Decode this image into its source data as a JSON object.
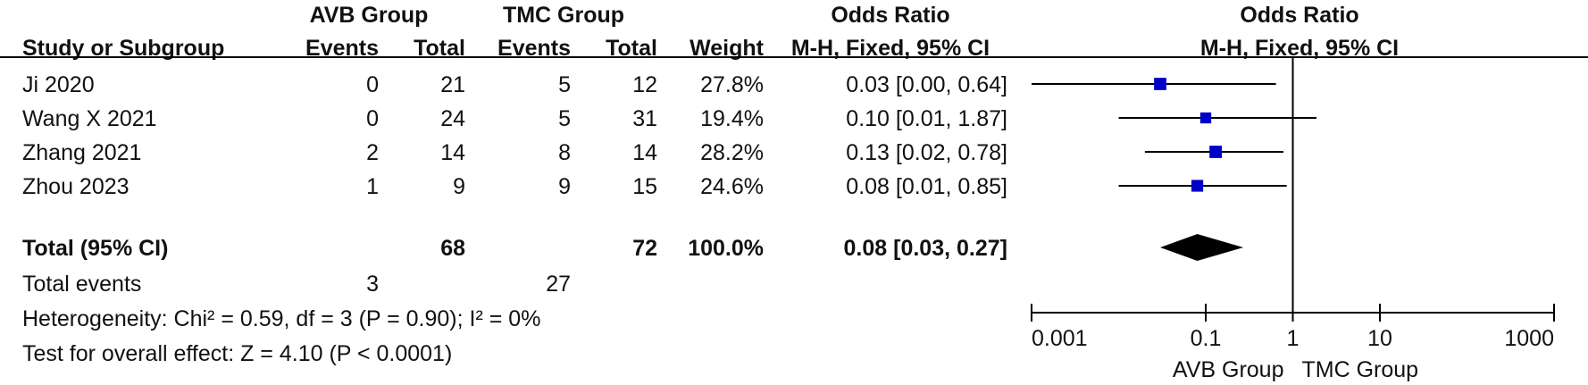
{
  "headers": {
    "group1_name": "AVB Group",
    "group2_name": "TMC Group",
    "odds_ratio": "Odds Ratio",
    "odds_ratio_plot": "Odds Ratio",
    "study_col": "Study or Subgroup",
    "events_col_1": "Events",
    "total_col_1": "Total",
    "events_col_2": "Events",
    "total_col_2": "Total",
    "weight_col": "Weight",
    "method_col": "M-H, Fixed, 95% CI",
    "method_col_plot": "M-H, Fixed, 95% CI"
  },
  "studies": [
    {
      "name": "Ji 2020",
      "g1_events": "0",
      "g1_total": "21",
      "g2_events": "5",
      "g2_total": "12",
      "weight": "27.8%",
      "ci_text": "0.03 [0.00, 0.64]"
    },
    {
      "name": "Wang X 2021",
      "g1_events": "0",
      "g1_total": "24",
      "g2_events": "5",
      "g2_total": "31",
      "weight": "19.4%",
      "ci_text": "0.10 [0.01, 1.87]"
    },
    {
      "name": "Zhang 2021",
      "g1_events": "2",
      "g1_total": "14",
      "g2_events": "8",
      "g2_total": "14",
      "weight": "28.2%",
      "ci_text": "0.13 [0.02, 0.78]"
    },
    {
      "name": "Zhou 2023",
      "g1_events": "1",
      "g1_total": "9",
      "g2_events": "9",
      "g2_total": "15",
      "weight": "24.6%",
      "ci_text": "0.08 [0.01, 0.85]"
    }
  ],
  "total": {
    "label": "Total (95% CI)",
    "g1_total": "68",
    "g2_total": "72",
    "weight": "100.0%",
    "ci_text": "0.08 [0.03, 0.27]"
  },
  "total_events": {
    "label": "Total events",
    "g1": "3",
    "g2": "27"
  },
  "heterogeneity": "Heterogeneity: Chi² = 0.59, df = 3 (P = 0.90); I² = 0%",
  "overall_effect": "Test for overall effect: Z = 4.10 (P < 0.0001)",
  "colors": {
    "marker": "#0000c8",
    "diamond": "#000000",
    "line": "#000000"
  },
  "chart_data": {
    "type": "forest",
    "scale": "log",
    "xlim": [
      0.001,
      1000
    ],
    "ticks": [
      0.001,
      0.1,
      1,
      10,
      1000
    ],
    "tick_labels": [
      "0.001",
      "0.1",
      "1",
      "10",
      "1000"
    ],
    "null_value": 1,
    "left_label": "AVB Group",
    "right_label": "TMC Group",
    "studies": [
      {
        "name": "Ji 2020",
        "or": 0.03,
        "lo": 0.001,
        "hi": 0.64,
        "weight": 27.8
      },
      {
        "name": "Wang X 2021",
        "or": 0.1,
        "lo": 0.01,
        "hi": 1.87,
        "weight": 19.4
      },
      {
        "name": "Zhang 2021",
        "or": 0.13,
        "lo": 0.02,
        "hi": 0.78,
        "weight": 28.2
      },
      {
        "name": "Zhou 2023",
        "or": 0.08,
        "lo": 0.01,
        "hi": 0.85,
        "weight": 24.6
      }
    ],
    "pooled": {
      "or": 0.08,
      "lo": 0.03,
      "hi": 0.27,
      "weight": 100.0
    }
  }
}
